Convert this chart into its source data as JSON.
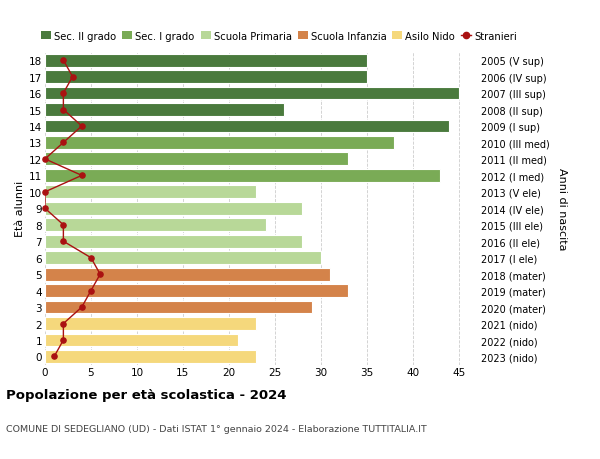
{
  "ages": [
    18,
    17,
    16,
    15,
    14,
    13,
    12,
    11,
    10,
    9,
    8,
    7,
    6,
    5,
    4,
    3,
    2,
    1,
    0
  ],
  "right_labels": [
    "2005 (V sup)",
    "2006 (IV sup)",
    "2007 (III sup)",
    "2008 (II sup)",
    "2009 (I sup)",
    "2010 (III med)",
    "2011 (II med)",
    "2012 (I med)",
    "2013 (V ele)",
    "2014 (IV ele)",
    "2015 (III ele)",
    "2016 (II ele)",
    "2017 (I ele)",
    "2018 (mater)",
    "2019 (mater)",
    "2020 (mater)",
    "2021 (nido)",
    "2022 (nido)",
    "2023 (nido)"
  ],
  "bar_values": [
    35,
    35,
    45,
    26,
    44,
    38,
    33,
    43,
    23,
    28,
    24,
    28,
    30,
    31,
    33,
    29,
    23,
    21,
    23
  ],
  "bar_colors": [
    "#4a7a3d",
    "#4a7a3d",
    "#4a7a3d",
    "#4a7a3d",
    "#4a7a3d",
    "#7aab56",
    "#7aab56",
    "#7aab56",
    "#b8d898",
    "#b8d898",
    "#b8d898",
    "#b8d898",
    "#b8d898",
    "#d4834a",
    "#d4834a",
    "#d4834a",
    "#f5d87c",
    "#f5d87c",
    "#f5d87c"
  ],
  "stranieri_values": [
    2,
    3,
    2,
    2,
    4,
    2,
    0,
    4,
    0,
    0,
    2,
    2,
    5,
    6,
    5,
    4,
    2,
    2,
    1
  ],
  "legend_labels": [
    "Sec. II grado",
    "Sec. I grado",
    "Scuola Primaria",
    "Scuola Infanzia",
    "Asilo Nido",
    "Stranieri"
  ],
  "legend_colors": [
    "#4a7a3d",
    "#7aab56",
    "#b8d898",
    "#d4834a",
    "#f5d87c",
    "#aa1111"
  ],
  "title": "Popolazione per età scolastica - 2024",
  "subtitle": "COMUNE DI SEDEGLIANO (UD) - Dati ISTAT 1° gennaio 2024 - Elaborazione TUTTITALIA.IT",
  "ylabel_left": "Età alunni",
  "ylabel_right": "Anni di nascita",
  "xlim": [
    0,
    47
  ],
  "xticks": [
    0,
    5,
    10,
    15,
    20,
    25,
    30,
    35,
    40,
    45
  ],
  "background_color": "#ffffff",
  "grid_color": "#cccccc"
}
